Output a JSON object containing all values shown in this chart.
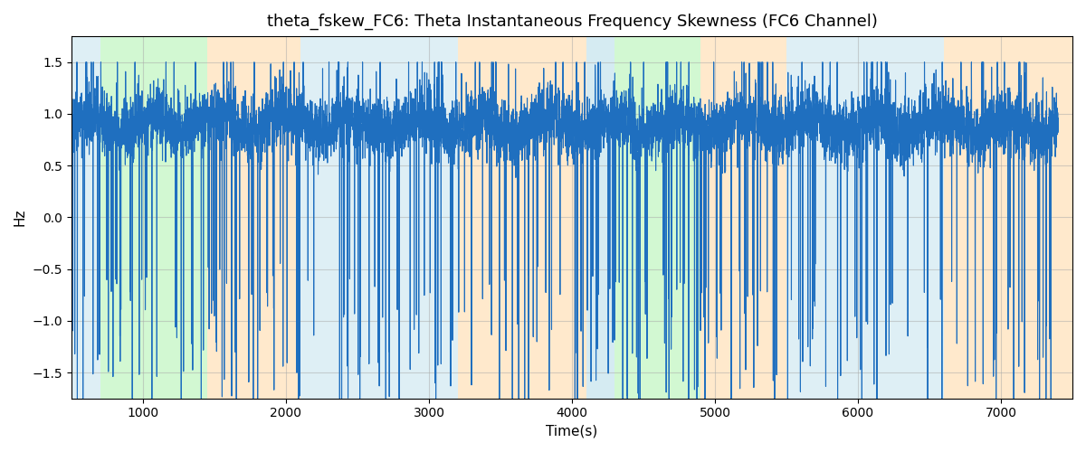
{
  "title": "theta_fskew_FC6: Theta Instantaneous Frequency Skewness (FC6 Channel)",
  "xlabel": "Time(s)",
  "ylabel": "Hz",
  "xlim": [
    500,
    7500
  ],
  "ylim": [
    -1.75,
    1.75
  ],
  "yticks": [
    -1.5,
    -1.0,
    -0.5,
    0.0,
    0.5,
    1.0,
    1.5
  ],
  "xticks": [
    1000,
    2000,
    3000,
    4000,
    5000,
    6000,
    7000
  ],
  "line_color": "#1f6fbf",
  "line_width": 0.8,
  "background_regions": [
    {
      "xstart": 500,
      "xend": 700,
      "color": "#add8e6",
      "alpha": 0.4
    },
    {
      "xstart": 700,
      "xend": 1450,
      "color": "#90ee90",
      "alpha": 0.4
    },
    {
      "xstart": 1450,
      "xend": 2100,
      "color": "#ffd59a",
      "alpha": 0.5
    },
    {
      "xstart": 2100,
      "xend": 3200,
      "color": "#add8e6",
      "alpha": 0.4
    },
    {
      "xstart": 3200,
      "xend": 4100,
      "color": "#ffd59a",
      "alpha": 0.5
    },
    {
      "xstart": 4100,
      "xend": 4300,
      "color": "#add8e6",
      "alpha": 0.5
    },
    {
      "xstart": 4300,
      "xend": 4900,
      "color": "#90ee90",
      "alpha": 0.4
    },
    {
      "xstart": 4900,
      "xend": 5500,
      "color": "#ffd59a",
      "alpha": 0.5
    },
    {
      "xstart": 5500,
      "xend": 6600,
      "color": "#add8e6",
      "alpha": 0.4
    },
    {
      "xstart": 6600,
      "xend": 7500,
      "color": "#ffd59a",
      "alpha": 0.5
    }
  ],
  "grid_color": "#aaaaaa",
  "grid_alpha": 0.5,
  "grid_linewidth": 0.8,
  "figsize": [
    12,
    5
  ],
  "dpi": 100,
  "seed": 42
}
